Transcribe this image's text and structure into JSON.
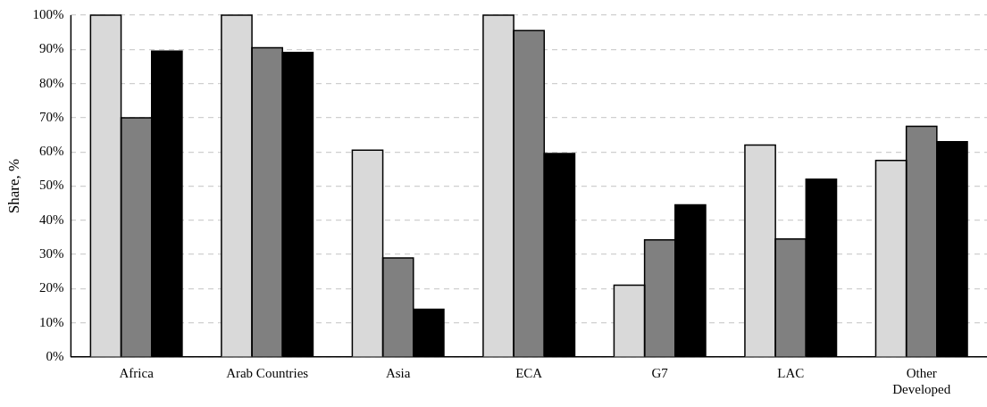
{
  "chart_data": {
    "type": "bar",
    "ylabel": "Share, %",
    "categories": [
      "Africa",
      "Arab Countries",
      "Asia",
      "ECA",
      "G7",
      "LAC",
      "Other Developed"
    ],
    "series": [
      {
        "color": "#d9d9d9",
        "values": [
          100,
          100,
          60.5,
          100,
          21,
          62,
          57.5
        ]
      },
      {
        "color": "#808080",
        "values": [
          70,
          90.5,
          29,
          95.5,
          34.3,
          34.5,
          67.5
        ]
      },
      {
        "color": "#000000",
        "values": [
          89.5,
          89.1,
          14,
          59.5,
          44.5,
          52,
          63
        ]
      }
    ],
    "ylim": [
      0,
      100
    ],
    "yticks": [
      {
        "value": 0,
        "label": "0%"
      },
      {
        "value": 10,
        "label": "10%"
      },
      {
        "value": 20,
        "label": "20%"
      },
      {
        "value": 30,
        "label": "30%"
      },
      {
        "value": 40,
        "label": "40%"
      },
      {
        "value": 50,
        "label": "50%"
      },
      {
        "value": 60,
        "label": "60%"
      },
      {
        "value": 70,
        "label": "70%"
      },
      {
        "value": 80,
        "label": "80%"
      },
      {
        "value": 90,
        "label": "90%"
      },
      {
        "value": 100,
        "label": "100%"
      }
    ],
    "grid": "y",
    "legend": false
  }
}
